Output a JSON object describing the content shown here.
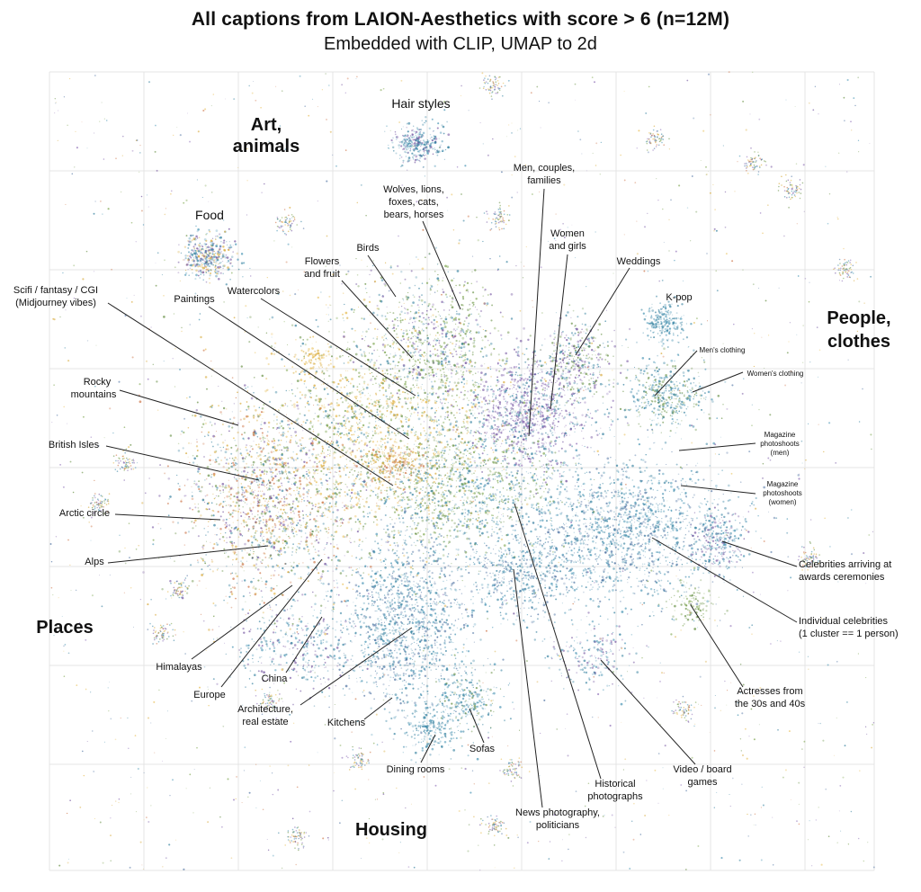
{
  "title": "All captions from LAION-Aesthetics with score > 6 (n=12M)",
  "subtitle": "Embedded with CLIP, UMAP to 2d",
  "chart_data": {
    "type": "scatter",
    "title": "All captions from LAION-Aesthetics with score > 6 (n=12M)",
    "subtitle": "Embedded with CLIP, UMAP to 2d",
    "xlabel": "",
    "ylabel": "",
    "grid": true,
    "legend": "none",
    "palette": [
      "#2a7a9a",
      "#3f8fb0",
      "#6b4a9a",
      "#8a6bb5",
      "#d4a22a",
      "#e6b94a",
      "#5f8a3a",
      "#7aa34a",
      "#c96a3a",
      "#4a6fa0"
    ],
    "region_labels": [
      "Art, animals",
      "Food",
      "Places",
      "Housing",
      "People, clothes"
    ],
    "annotations": [
      "Hair styles",
      "Wolves, lions, foxes, cats, bears, horses",
      "Men, couples, families",
      "Women and girls",
      "Weddings",
      "K-pop",
      "Birds",
      "Flowers and fruit",
      "Watercolors",
      "Paintings",
      "Scifi / fantasy / CGI (Midjourney vibes)",
      "Rocky mountains",
      "British Isles",
      "Arctic circle",
      "Alps",
      "Himalayas",
      "Europe",
      "China",
      "Architecture, real estate",
      "Kitchens",
      "Dining rooms",
      "Sofas",
      "News photography, politicians",
      "Historical photographs",
      "Video / board games",
      "Actresses from the 30s and 40s",
      "Individual celebrities (1 cluster == 1 person)",
      "Celebrities arriving at awards ceremonies",
      "Magazine photoshoots (women)",
      "Magazine photoshoots (men)",
      "Women's clothing",
      "Men's clothing"
    ]
  },
  "regions": {
    "art_animals": [
      "Art,",
      "animals"
    ],
    "food": "Food",
    "places": "Places",
    "housing": "Housing",
    "people_clothes": [
      "People,",
      "clothes"
    ]
  },
  "labels": {
    "hair_styles": "Hair styles",
    "wolves": [
      "Wolves, lions,",
      "foxes, cats,",
      "bears, horses"
    ],
    "men_couples": [
      "Men, couples,",
      "families"
    ],
    "women_girls": [
      "Women",
      "and girls"
    ],
    "weddings": "Weddings",
    "kpop": "K-pop",
    "birds": "Birds",
    "flowers": [
      "Flowers",
      "and fruit"
    ],
    "watercolors": "Watercolors",
    "paintings": "Paintings",
    "scifi": [
      "Scifi / fantasy / CGI",
      "(Midjourney vibes)"
    ],
    "rocky": [
      "Rocky",
      "mountains"
    ],
    "british": "British Isles",
    "arctic": "Arctic circle",
    "alps": "Alps",
    "himalayas": "Himalayas",
    "europe": "Europe",
    "china": "China",
    "architecture": [
      "Architecture,",
      "real estate"
    ],
    "kitchens": "Kitchens",
    "dining": "Dining rooms",
    "sofas": "Sofas",
    "news": [
      "News photography,",
      "politicians"
    ],
    "historical": [
      "Historical",
      "photographs"
    ],
    "games": [
      "Video / board",
      "games"
    ],
    "actresses": [
      "Actresses from",
      "the 30s and 40s"
    ],
    "individual": [
      "Individual celebrities",
      "(1 cluster == 1 person)"
    ],
    "awards": [
      "Celebrities arriving at",
      "awards ceremonies"
    ],
    "mag_women": [
      "Magazine",
      "photoshoots",
      "(women)"
    ],
    "mag_men": [
      "Magazine",
      "photoshoots",
      "(men)"
    ],
    "womens_clothing": "Women's clothing",
    "mens_clothing": "Men's clothing"
  }
}
